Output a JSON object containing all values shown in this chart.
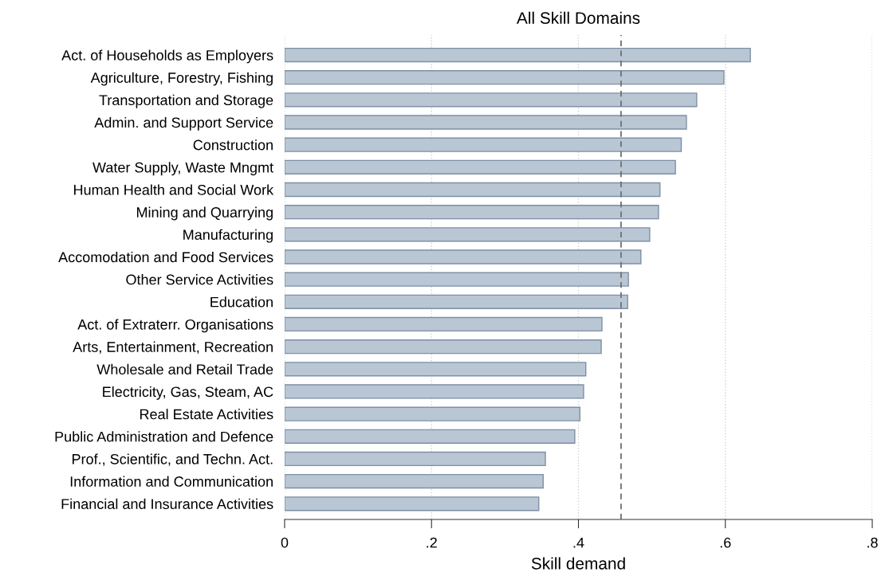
{
  "chart_data": {
    "type": "bar",
    "orientation": "horizontal",
    "title": "All Skill Domains",
    "xlabel": "Skill demand",
    "categories": [
      "Act. of Households as Employers",
      "Agriculture, Forestry, Fishing",
      "Transportation and Storage",
      "Admin. and Support Service",
      "Construction",
      "Water Supply, Waste Mngmt",
      "Human Health and Social Work",
      "Mining and Quarrying",
      "Manufacturing",
      "Accomodation and Food Services",
      "Other Service Activities",
      "Education",
      "Act. of Extraterr. Organisations",
      "Arts, Entertainment, Recreation",
      "Wholesale and Retail Trade",
      "Electricity, Gas, Steam, AC",
      "Real Estate Activities",
      "Public Administration and Defence",
      "Prof., Scientific, and Techn. Act.",
      "Information and Communication",
      "Financial and Insurance Activities"
    ],
    "values": [
      0.634,
      0.598,
      0.561,
      0.547,
      0.54,
      0.532,
      0.511,
      0.509,
      0.497,
      0.485,
      0.468,
      0.467,
      0.432,
      0.431,
      0.41,
      0.407,
      0.402,
      0.395,
      0.355,
      0.352,
      0.346
    ],
    "color": "#b9c6d3",
    "xlim": [
      0,
      0.8
    ],
    "xticks": [
      0,
      {
        "value": 0.2,
        "label": ".2"
      },
      {
        "value": 0.4,
        "label": ".4"
      },
      {
        "value": 0.6,
        "label": ".6"
      },
      {
        "value": 0.8,
        "label": ".8"
      }
    ],
    "grid": "x",
    "ref_lines": [
      {
        "axis": "x",
        "value": 0.458,
        "color": "#707070",
        "line_style": "dashed"
      }
    ]
  }
}
